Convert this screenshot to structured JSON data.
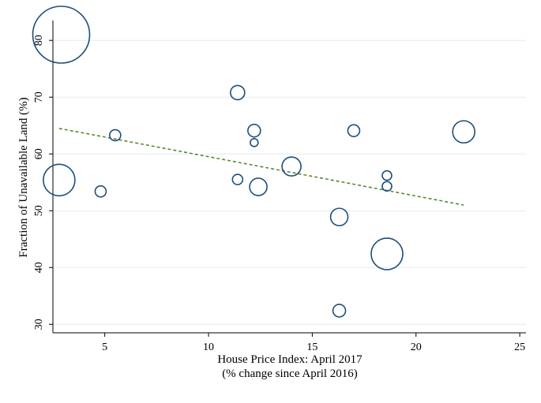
{
  "chart_data": {
    "type": "scatter",
    "title": "",
    "xlabel": "House Price Index: April 2017",
    "xlabel_line2": "(% change since April 2016)",
    "ylabel": "Fraction of Unavailable Land (%)",
    "xlim": [
      2.5,
      25.3
    ],
    "ylim": [
      28.5,
      83.5
    ],
    "xticks": [
      5,
      10,
      15,
      20,
      25
    ],
    "yticks": [
      30,
      40,
      50,
      60,
      70,
      80
    ],
    "grid": "horizontal",
    "marker_color": "#1f4e79",
    "fit_line_color": "#5a8a2e",
    "points": [
      {
        "x": 2.9,
        "y": 81.0,
        "weight": 36
      },
      {
        "x": 2.8,
        "y": 55.4,
        "weight": 20
      },
      {
        "x": 4.8,
        "y": 53.4,
        "weight": 7
      },
      {
        "x": 5.5,
        "y": 63.3,
        "weight": 7
      },
      {
        "x": 11.4,
        "y": 70.8,
        "weight": 9
      },
      {
        "x": 11.4,
        "y": 55.5,
        "weight": 6.5
      },
      {
        "x": 12.2,
        "y": 64.1,
        "weight": 8
      },
      {
        "x": 12.2,
        "y": 62.0,
        "weight": 5
      },
      {
        "x": 12.4,
        "y": 54.2,
        "weight": 11
      },
      {
        "x": 14.0,
        "y": 57.8,
        "weight": 12
      },
      {
        "x": 16.3,
        "y": 48.9,
        "weight": 11
      },
      {
        "x": 16.3,
        "y": 32.4,
        "weight": 8
      },
      {
        "x": 17.0,
        "y": 64.1,
        "weight": 7.5
      },
      {
        "x": 18.6,
        "y": 56.2,
        "weight": 6
      },
      {
        "x": 18.6,
        "y": 54.3,
        "weight": 6
      },
      {
        "x": 18.6,
        "y": 42.4,
        "weight": 20
      },
      {
        "x": 22.3,
        "y": 63.9,
        "weight": 14
      }
    ],
    "fit_line": {
      "x": [
        2.8,
        22.3
      ],
      "y": [
        64.5,
        51.0
      ]
    }
  }
}
